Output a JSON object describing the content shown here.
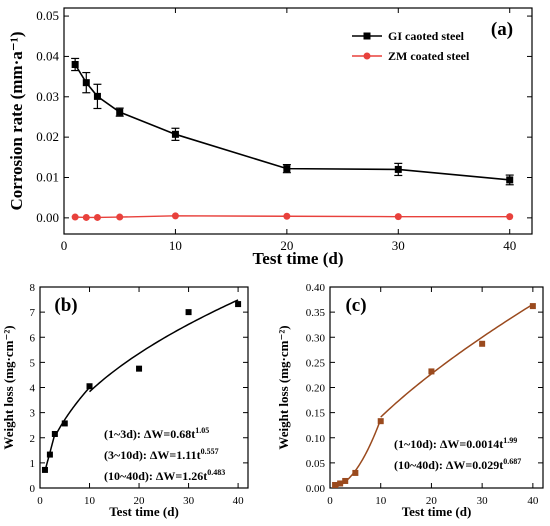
{
  "chart_data": [
    {
      "type": "line",
      "panel_label": "(a)",
      "xlabel": "Test time (d)",
      "ylabel": "Corrosion rate (mm·a⁻¹)",
      "xlim": [
        0,
        42
      ],
      "ylim": [
        -0.004,
        0.052
      ],
      "xticks": [
        0,
        10,
        20,
        30,
        40
      ],
      "yticks": [
        "0.00",
        "0.01",
        "0.02",
        "0.03",
        "0.04",
        "0.05"
      ],
      "legend_position": "top-right",
      "series": [
        {
          "name": "GI caoted steel",
          "color": "#000000",
          "marker": "square",
          "x": [
            1,
            2,
            3,
            5,
            10,
            20,
            30,
            40
          ],
          "y": [
            0.038,
            0.0335,
            0.0301,
            0.0262,
            0.0207,
            0.0122,
            0.012,
            0.0094
          ],
          "err": [
            0.0015,
            0.0025,
            0.003,
            0.001,
            0.0015,
            0.001,
            0.0015,
            0.0012
          ]
        },
        {
          "name": "ZM coated steel",
          "color": "#e8413c",
          "marker": "circle",
          "x": [
            1,
            2,
            3,
            5,
            10,
            20,
            30,
            40
          ],
          "y": [
            0.0002,
            0.0001,
            0.0001,
            0.0002,
            0.0005,
            0.0004,
            0.0003,
            0.0003
          ]
        }
      ]
    },
    {
      "type": "scatter",
      "panel_label": "(b)",
      "xlabel": "Test time (d)",
      "ylabel": "Weight loss (mg·cm⁻²)",
      "xlim": [
        0,
        42
      ],
      "ylim": [
        0,
        8
      ],
      "xticks": [
        0,
        10,
        20,
        30,
        40
      ],
      "yticks": [
        0,
        1,
        2,
        3,
        4,
        5,
        6,
        7,
        8
      ],
      "series": [
        {
          "marker": "square",
          "color": "#000000",
          "x": [
            1,
            2,
            3,
            5,
            10,
            20,
            30,
            40
          ],
          "y": [
            0.72,
            1.33,
            2.15,
            2.57,
            4.05,
            4.75,
            7.0,
            7.32
          ]
        }
      ],
      "fits": [
        {
          "range": [
            1,
            3
          ],
          "a": 0.68,
          "b": 1.05
        },
        {
          "range": [
            3,
            10
          ],
          "a": 1.11,
          "b": 0.557
        },
        {
          "range": [
            10,
            40
          ],
          "a": 1.26,
          "b": 0.483
        }
      ],
      "annotations": [
        {
          "prefix": "(1~3d): ΔW=0.68t",
          "exp": "1.05"
        },
        {
          "prefix": "(3~10d): ΔW=1.11t",
          "exp": "0.557"
        },
        {
          "prefix": "(10~40d): ΔW=1.26t",
          "exp": "0.483"
        }
      ]
    },
    {
      "type": "scatter",
      "panel_label": "(c)",
      "xlabel": "Test time (d)",
      "ylabel": "Weight loss (mg·cm⁻²)",
      "xlim": [
        0,
        42
      ],
      "ylim": [
        0,
        0.4
      ],
      "xticks": [
        0,
        10,
        20,
        30,
        40
      ],
      "yticks": [
        "0.00",
        "0.05",
        "0.10",
        "0.15",
        "0.20",
        "0.25",
        "0.30",
        "0.35",
        "0.40"
      ],
      "series": [
        {
          "marker": "square",
          "color": "#9a4a1e",
          "x": [
            1,
            2,
            3,
            5,
            10,
            20,
            30,
            40
          ],
          "y": [
            0.006,
            0.009,
            0.014,
            0.03,
            0.133,
            0.232,
            0.287,
            0.362
          ]
        }
      ],
      "fits": [
        {
          "range": [
            1,
            10
          ],
          "a": 0.0014,
          "b": 1.99
        },
        {
          "range": [
            10,
            40
          ],
          "a": 0.029,
          "b": 0.687
        }
      ],
      "annotations": [
        {
          "prefix": "(1~10d): ΔW=0.0014t",
          "exp": "1.99"
        },
        {
          "prefix": "(10~40d): ΔW=0.029t",
          "exp": "0.687"
        }
      ]
    }
  ]
}
